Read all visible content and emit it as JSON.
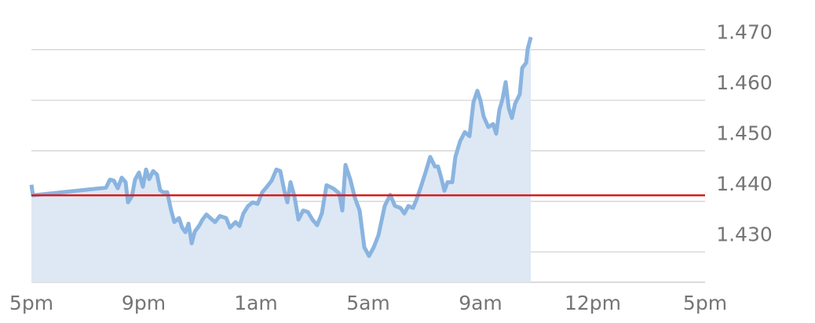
{
  "chart_data": {
    "type": "area",
    "x": [
      0,
      0.014,
      0.664,
      0.699,
      0.734,
      0.769,
      0.804,
      0.839,
      0.86,
      0.895,
      0.923,
      0.958,
      0.993,
      1.021,
      1.049,
      1.084,
      1.119,
      1.147,
      1.175,
      1.21,
      1.245,
      1.273,
      1.315,
      1.343,
      1.371,
      1.399,
      1.427,
      1.455,
      1.497,
      1.524,
      1.559,
      1.594,
      1.636,
      1.678,
      1.734,
      1.769,
      1.818,
      1.853,
      1.888,
      1.93,
      1.972,
      2.014,
      2.056,
      2.098,
      2.14,
      2.182,
      2.217,
      2.252,
      2.28,
      2.308,
      2.343,
      2.378,
      2.42,
      2.462,
      2.503,
      2.545,
      2.587,
      2.629,
      2.685,
      2.741,
      2.769,
      2.797,
      2.839,
      2.881,
      2.923,
      2.965,
      3.007,
      3.049,
      3.091,
      3.147,
      3.196,
      3.238,
      3.287,
      3.322,
      3.357,
      3.399,
      3.427,
      3.469,
      3.51,
      3.552,
      3.594,
      3.622,
      3.65,
      3.678,
      3.706,
      3.748,
      3.776,
      3.818,
      3.86,
      3.902,
      3.937,
      3.972,
      4.0,
      4.028,
      4.07,
      4.112,
      4.14,
      4.168,
      4.196,
      4.224,
      4.252,
      4.28,
      4.308,
      4.35,
      4.371,
      4.406,
      4.42,
      4.448
    ],
    "series": [
      {
        "color": "#8ab4e0",
        "fill": "#dde8f4",
        "values": [
          1.4433,
          1.4412,
          1.4427,
          1.4443,
          1.4441,
          1.4426,
          1.4447,
          1.4438,
          1.4398,
          1.441,
          1.4443,
          1.4457,
          1.4429,
          1.4463,
          1.4444,
          1.446,
          1.4453,
          1.4422,
          1.4418,
          1.4418,
          1.4382,
          1.4359,
          1.4367,
          1.4348,
          1.4339,
          1.4356,
          1.4317,
          1.434,
          1.4353,
          1.4364,
          1.4374,
          1.4367,
          1.4359,
          1.4371,
          1.4367,
          1.4348,
          1.4359,
          1.4351,
          1.4376,
          1.4391,
          1.4398,
          1.4395,
          1.4418,
          1.4429,
          1.4441,
          1.4463,
          1.446,
          1.4422,
          1.4398,
          1.4438,
          1.441,
          1.4364,
          1.4382,
          1.4379,
          1.4364,
          1.4353,
          1.4376,
          1.4432,
          1.4426,
          1.4416,
          1.4382,
          1.4472,
          1.4444,
          1.4407,
          1.4382,
          1.4309,
          1.4292,
          1.4309,
          1.4333,
          1.4391,
          1.4413,
          1.4391,
          1.4387,
          1.4376,
          1.4391,
          1.4387,
          1.4402,
          1.4429,
          1.4457,
          1.4488,
          1.4469,
          1.4469,
          1.4447,
          1.4421,
          1.4438,
          1.4438,
          1.4488,
          1.4519,
          1.4537,
          1.4529,
          1.4596,
          1.4619,
          1.4599,
          1.4568,
          1.4547,
          1.4553,
          1.4534,
          1.4581,
          1.4602,
          1.4636,
          1.4584,
          1.4565,
          1.4593,
          1.4612,
          1.4664,
          1.4674,
          1.4702,
          1.4725
        ]
      }
    ],
    "reference_value": 1.4412,
    "reference_color": "#d81b1b",
    "xlim": [
      0,
      6
    ],
    "xticks": [
      {
        "value": 0,
        "label": "5pm"
      },
      {
        "value": 1,
        "label": "9pm"
      },
      {
        "value": 2,
        "label": "1am"
      },
      {
        "value": 3,
        "label": "5am"
      },
      {
        "value": 4,
        "label": "9am"
      },
      {
        "value": 5,
        "label": "12pm"
      },
      {
        "value": 6,
        "label": "5pm"
      }
    ],
    "ylim": [
      1.424,
      1.4755
    ],
    "yticks": [
      {
        "value": 1.43,
        "label": "1.430"
      },
      {
        "value": 1.44,
        "label": "1.440"
      },
      {
        "value": 1.45,
        "label": "1.450"
      },
      {
        "value": 1.46,
        "label": "1.460"
      },
      {
        "value": 1.47,
        "label": "1.470"
      }
    ],
    "grid": true
  }
}
